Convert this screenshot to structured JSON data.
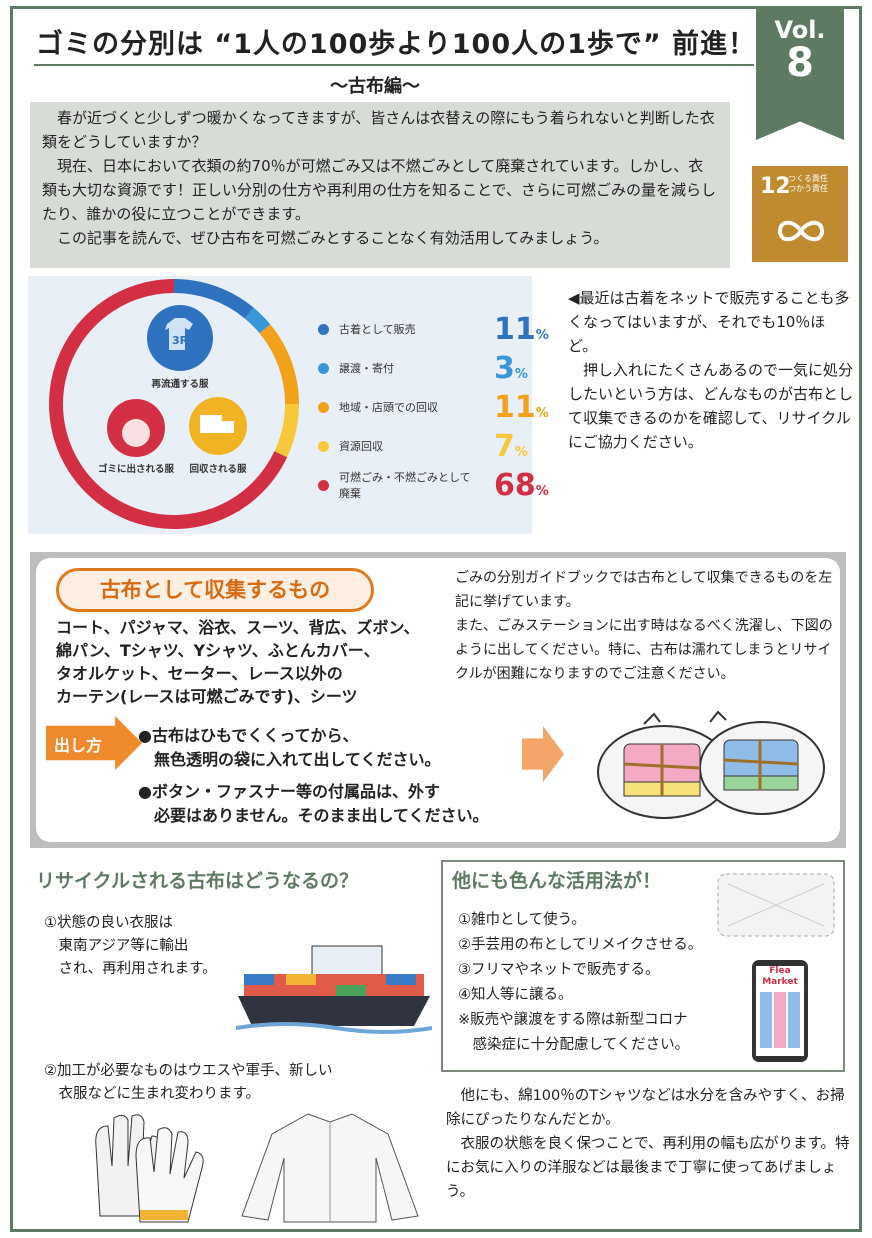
{
  "header": {
    "title": "ゴミの分別は “1人の100歩より100人の1歩で” 前進！",
    "subtitle": "～古布編～",
    "vol_label": "Vol.",
    "vol_number": "8"
  },
  "sdg": {
    "number": "12",
    "line1": "つくる責任",
    "line2": "つかう責任"
  },
  "intro": [
    "　春が近づくと少しずつ暖かくなってきますが、皆さんは衣替えの際にもう着られないと判断した衣類をどうしていますか？",
    "　現在、日本において衣類の約70％が可燃ごみ又は不燃ごみとして廃棄されています。しかし、衣類も大切な資源です！正しい分別の仕方や再利用の仕方を知ることで、さらに可燃ごみの量を減らしたり、誰かの役に立つことができます。",
    "　この記事を読んで、ぜひ古布を可燃ごみとすることなく有効活用してみましょう。"
  ],
  "chart_data": {
    "type": "pie",
    "categories": [
      "古着として販売",
      "譲渡・寄付",
      "地域・店頭での回収",
      "資源回収",
      "可燃ごみ・不燃ごみとして廃棄"
    ],
    "values": [
      11,
      3,
      11,
      7,
      68
    ],
    "unit": "%",
    "colors": [
      "#2f73c0",
      "#3a96d8",
      "#f0a21a",
      "#f6c83a",
      "#d22f45"
    ],
    "icon_labels": [
      "再流通する服",
      "ゴミに出される服",
      "回収される服"
    ],
    "center_icon_text": "3R"
  },
  "side_note": [
    "◀最近は古着をネットで販売することも多くなってはいますが、それでも10％ほど。",
    "　押し入れにたくさんあるので一気に処分したいという方は、どんなものが古布として収集できるのかを確認して、リサイクルにご協力ください。"
  ],
  "collect": {
    "heading": "古布として収集するもの",
    "items": [
      "コート、パジャマ、浴衣、スーツ、背広、ズボン、",
      "綿パン、Tシャツ、Yシャツ、ふとんカバー、",
      "タオルケット、セーター、レース以外の",
      "カーテン(レースは可燃ごみです)、シーツ"
    ],
    "guide": [
      "ごみの分別ガイドブックでは古布として収集できるものを左記に挙げています。",
      "また、ごみステーションに出す時はなるべく洗濯し、下図のように出してください。特に、古布は濡れてしまうとリサイクルが困難になりますのでご注意ください。"
    ],
    "how_label": "出し方",
    "how": [
      "●古布はひもでくくってから、\n　無色透明の袋に入れて出してください。",
      "●ボタン・ファスナー等の付属品は、外す\n　必要はありません。そのまま出してください。"
    ]
  },
  "recycle": {
    "heading": "リサイクルされる古布はどうなるの？",
    "p1": "①状態の良い衣服は\n　東南アジア等に輸出\n　され、再利用されます。",
    "p2": "②加工が必要なものはウエスや軍手、新しい\n　衣服などに生まれ変わります。"
  },
  "uses": {
    "heading": "他にも色んな活用法が！",
    "items": [
      "①雑巾として使う。",
      "②手芸用の布としてリメイクさせる。",
      "③フリマやネットで販売する。",
      "④知人等に譲る。",
      "※販売や譲渡をする際は新型コロナ",
      "　感染症に十分配慮してください。"
    ],
    "phone_text": [
      "Flea",
      "Market"
    ]
  },
  "bottom": [
    "　他にも、綿100％のTシャツなどは水分を含みやすく、お掃除にぴったりなんだとか。",
    "　衣服の状態を良く保つことで、再利用の幅も広がります。特にお気に入りの洋服などは最後まで丁寧に使ってあげましょう。"
  ]
}
